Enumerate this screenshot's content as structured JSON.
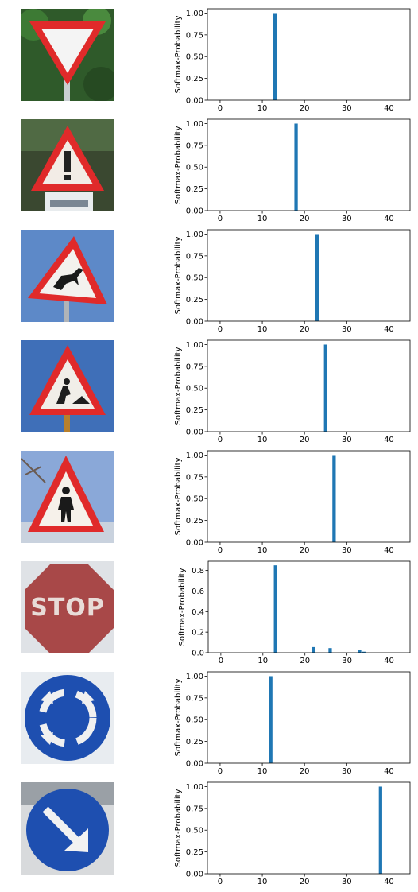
{
  "figure": {
    "ylabel": "Softmax-Probability"
  },
  "signs": [
    {
      "name": "yield-sign-image",
      "type": "yield"
    },
    {
      "name": "general-caution-sign-image",
      "type": "caution"
    },
    {
      "name": "wild-animals-crossing-sign-image",
      "type": "deer"
    },
    {
      "name": "road-work-sign-image",
      "type": "roadwork"
    },
    {
      "name": "pedestrians-sign-image",
      "type": "pedestrian"
    },
    {
      "name": "stop-sign-image",
      "type": "stop",
      "text": "STOP"
    },
    {
      "name": "roundabout-mandatory-sign-image",
      "type": "roundabout"
    },
    {
      "name": "keep-right-sign-image",
      "type": "keepright"
    }
  ],
  "chart_data": [
    {
      "type": "bar",
      "ylabel": "Softmax-Probability",
      "xlim": [
        -3,
        45
      ],
      "ylim": [
        0,
        1.05
      ],
      "xticks": [
        0,
        10,
        20,
        30,
        40
      ],
      "yticks": [
        0,
        0.25,
        0.5,
        0.75,
        1.0
      ],
      "ytick_labels": [
        "0.00",
        "0.25",
        "0.50",
        "0.75",
        "1.00"
      ],
      "bars": [
        {
          "x": 13,
          "value": 1.0
        }
      ]
    },
    {
      "type": "bar",
      "ylabel": "Softmax-Probability",
      "xlim": [
        -3,
        45
      ],
      "ylim": [
        0,
        1.05
      ],
      "xticks": [
        0,
        10,
        20,
        30,
        40
      ],
      "yticks": [
        0,
        0.25,
        0.5,
        0.75,
        1.0
      ],
      "ytick_labels": [
        "0.00",
        "0.25",
        "0.50",
        "0.75",
        "1.00"
      ],
      "bars": [
        {
          "x": 18,
          "value": 1.0
        }
      ]
    },
    {
      "type": "bar",
      "ylabel": "Softmax-Probability",
      "xlim": [
        -3,
        45
      ],
      "ylim": [
        0,
        1.05
      ],
      "xticks": [
        0,
        10,
        20,
        30,
        40
      ],
      "yticks": [
        0,
        0.25,
        0.5,
        0.75,
        1.0
      ],
      "ytick_labels": [
        "0.00",
        "0.25",
        "0.50",
        "0.75",
        "1.00"
      ],
      "bars": [
        {
          "x": 23,
          "value": 1.0
        }
      ]
    },
    {
      "type": "bar",
      "ylabel": "Softmax-Probability",
      "xlim": [
        -3,
        45
      ],
      "ylim": [
        0,
        1.05
      ],
      "xticks": [
        0,
        10,
        20,
        30,
        40
      ],
      "yticks": [
        0,
        0.25,
        0.5,
        0.75,
        1.0
      ],
      "ytick_labels": [
        "0.00",
        "0.25",
        "0.50",
        "0.75",
        "1.00"
      ],
      "bars": [
        {
          "x": 25,
          "value": 1.0
        }
      ]
    },
    {
      "type": "bar",
      "ylabel": "Softmax-Probability",
      "xlim": [
        -3,
        45
      ],
      "ylim": [
        0,
        1.05
      ],
      "xticks": [
        0,
        10,
        20,
        30,
        40
      ],
      "yticks": [
        0,
        0.25,
        0.5,
        0.75,
        1.0
      ],
      "ytick_labels": [
        "0.00",
        "0.25",
        "0.50",
        "0.75",
        "1.00"
      ],
      "bars": [
        {
          "x": 27,
          "value": 1.0
        }
      ]
    },
    {
      "type": "bar",
      "ylabel": "Softmax-Probability",
      "xlim": [
        -3,
        45
      ],
      "ylim": [
        0,
        0.89
      ],
      "xticks": [
        0,
        10,
        20,
        30,
        40
      ],
      "yticks": [
        0,
        0.2,
        0.4,
        0.6,
        0.8
      ],
      "ytick_labels": [
        "0.0",
        "0.2",
        "0.4",
        "0.6",
        "0.8"
      ],
      "bars": [
        {
          "x": 13,
          "value": 0.85
        },
        {
          "x": 22,
          "value": 0.055
        },
        {
          "x": 26,
          "value": 0.045
        },
        {
          "x": 33,
          "value": 0.025
        },
        {
          "x": 34,
          "value": 0.01
        }
      ]
    },
    {
      "type": "bar",
      "ylabel": "Softmax-Probability",
      "xlim": [
        -3,
        45
      ],
      "ylim": [
        0,
        1.05
      ],
      "xticks": [
        0,
        10,
        20,
        30,
        40
      ],
      "yticks": [
        0,
        0.25,
        0.5,
        0.75,
        1.0
      ],
      "ytick_labels": [
        "0.00",
        "0.25",
        "0.50",
        "0.75",
        "1.00"
      ],
      "bars": [
        {
          "x": 12,
          "value": 1.0
        }
      ]
    },
    {
      "type": "bar",
      "ylabel": "Softmax-Probability",
      "xlim": [
        -3,
        45
      ],
      "ylim": [
        0,
        1.05
      ],
      "xticks": [
        0,
        10,
        20,
        30,
        40
      ],
      "yticks": [
        0,
        0.25,
        0.5,
        0.75,
        1.0
      ],
      "ytick_labels": [
        "0.00",
        "0.25",
        "0.50",
        "0.75",
        "1.00"
      ],
      "bars": [
        {
          "x": 38,
          "value": 1.0
        }
      ]
    }
  ],
  "colors": {
    "bar": "#1f77b4",
    "axis": "#000000",
    "sign_red": "#e02a2a",
    "sign_blue": "#1e4fb0",
    "stop_red": "#a84848",
    "sky": "#5d89c8"
  }
}
